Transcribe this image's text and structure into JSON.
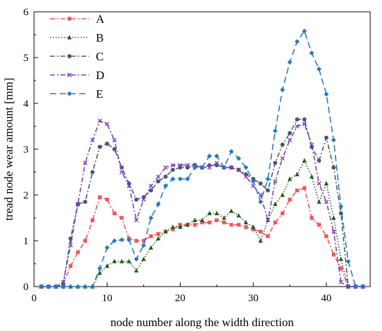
{
  "chart_data": {
    "type": "line",
    "xlabel": "node number along the width direction",
    "ylabel": "tread node wear amount [mm]",
    "xlim": [
      0,
      46
    ],
    "ylim": [
      0,
      6
    ],
    "xticks": [
      0,
      10,
      20,
      30,
      40
    ],
    "yticks": [
      0,
      1,
      2,
      3,
      4,
      5,
      6
    ],
    "legend_position": "top-left",
    "grid": false,
    "series": [
      {
        "name": "A",
        "color": "#f2545b",
        "dash": "dashdot",
        "marker": "square",
        "x": [
          1,
          2,
          3,
          4,
          5,
          6,
          7,
          8,
          9,
          10,
          11,
          12,
          13,
          14,
          15,
          16,
          17,
          18,
          19,
          20,
          21,
          22,
          23,
          24,
          25,
          26,
          27,
          28,
          29,
          30,
          31,
          32,
          33,
          34,
          35,
          36,
          37,
          38,
          39,
          40,
          41,
          42,
          43,
          44,
          45
        ],
        "y": [
          0,
          0,
          0,
          0.05,
          0.45,
          0.75,
          1.0,
          1.45,
          1.95,
          1.9,
          1.6,
          1.5,
          1.05,
          1.0,
          1.0,
          1.1,
          1.15,
          1.2,
          1.25,
          1.35,
          1.35,
          1.35,
          1.4,
          1.4,
          1.45,
          1.4,
          1.35,
          1.35,
          1.3,
          1.25,
          1.2,
          1.1,
          1.4,
          1.6,
          1.9,
          2.1,
          2.15,
          1.5,
          1.35,
          1.1,
          0.7,
          0.4,
          0,
          0,
          0
        ]
      },
      {
        "name": "B",
        "color": "#1e5e1e",
        "dash": "dot",
        "marker": "triangle",
        "x": [
          1,
          2,
          3,
          4,
          5,
          6,
          7,
          8,
          9,
          10,
          11,
          12,
          13,
          14,
          15,
          16,
          17,
          18,
          19,
          20,
          21,
          22,
          23,
          24,
          25,
          26,
          27,
          28,
          29,
          30,
          31,
          32,
          33,
          34,
          35,
          36,
          37,
          38,
          39,
          40,
          41,
          42,
          43,
          44,
          45
        ],
        "y": [
          0,
          0,
          0,
          0,
          0,
          0,
          0,
          0,
          0.3,
          0.45,
          0.55,
          0.55,
          0.55,
          0.35,
          0.6,
          0.85,
          1.05,
          1.2,
          1.3,
          1.3,
          1.35,
          1.45,
          1.45,
          1.6,
          1.6,
          1.5,
          1.65,
          1.55,
          1.4,
          1.3,
          1.0,
          1.45,
          1.8,
          2.0,
          2.35,
          2.45,
          2.75,
          2.4,
          1.85,
          2.25,
          1.5,
          0.6,
          0,
          0,
          0
        ]
      },
      {
        "name": "C",
        "color": "#475a73",
        "dash": "dashdot",
        "marker": "circle",
        "x": [
          1,
          2,
          3,
          4,
          5,
          6,
          7,
          8,
          9,
          10,
          11,
          12,
          13,
          14,
          15,
          16,
          17,
          18,
          19,
          20,
          21,
          22,
          23,
          24,
          25,
          26,
          27,
          28,
          29,
          30,
          31,
          32,
          33,
          34,
          35,
          36,
          37,
          38,
          39,
          40,
          41,
          42,
          43,
          44,
          45
        ],
        "y": [
          0,
          0,
          0,
          0.05,
          1.05,
          1.8,
          1.85,
          2.5,
          3.05,
          3.12,
          3.0,
          2.6,
          2.25,
          1.9,
          1.95,
          2.1,
          2.3,
          2.4,
          2.55,
          2.6,
          2.6,
          2.65,
          2.6,
          2.65,
          2.65,
          2.6,
          2.6,
          2.55,
          2.45,
          2.35,
          2.25,
          2.1,
          2.7,
          3.1,
          3.35,
          3.65,
          3.65,
          3.05,
          2.75,
          3.25,
          2.6,
          1.6,
          0,
          0,
          0
        ]
      },
      {
        "name": "D",
        "color": "#7a3fc0",
        "dash": "dashdot",
        "marker": "x",
        "x": [
          1,
          2,
          3,
          4,
          5,
          6,
          7,
          8,
          9,
          10,
          11,
          12,
          13,
          14,
          15,
          16,
          17,
          18,
          19,
          20,
          21,
          22,
          23,
          24,
          25,
          26,
          27,
          28,
          29,
          30,
          31,
          32,
          33,
          34,
          35,
          36,
          37,
          38,
          39,
          40,
          41,
          42,
          43,
          44,
          45
        ],
        "y": [
          0,
          0,
          0,
          0.1,
          0.9,
          1.8,
          2.7,
          3.2,
          3.62,
          3.55,
          3.2,
          2.5,
          2.2,
          1.45,
          1.9,
          2.2,
          2.4,
          2.6,
          2.65,
          2.65,
          2.65,
          2.65,
          2.6,
          2.6,
          2.7,
          2.6,
          2.6,
          2.55,
          2.4,
          2.2,
          2.0,
          1.45,
          2.3,
          2.8,
          3.2,
          3.5,
          3.55,
          3.1,
          2.25,
          1.85,
          1.2,
          0.1,
          0,
          0,
          0
        ]
      },
      {
        "name": "E",
        "color": "#2a78c2",
        "dash": "dash",
        "marker": "diamond",
        "x": [
          1,
          2,
          3,
          4,
          5,
          6,
          7,
          8,
          9,
          10,
          11,
          12,
          13,
          14,
          15,
          16,
          17,
          18,
          19,
          20,
          21,
          22,
          23,
          24,
          25,
          26,
          27,
          28,
          29,
          30,
          31,
          32,
          33,
          34,
          35,
          36,
          37,
          38,
          39,
          40,
          41,
          42,
          43,
          44,
          45
        ],
        "y": [
          0,
          0,
          0,
          0,
          0,
          0,
          0,
          0,
          0.4,
          0.85,
          1.0,
          1.02,
          1.02,
          0.6,
          0.9,
          1.5,
          1.8,
          2.2,
          2.35,
          2.35,
          2.35,
          2.6,
          2.6,
          2.85,
          2.85,
          2.6,
          2.95,
          2.8,
          2.6,
          2.3,
          1.85,
          2.35,
          3.4,
          4.3,
          4.9,
          5.35,
          5.58,
          5.1,
          4.75,
          4.2,
          3.2,
          1.75,
          0.55,
          0,
          0
        ]
      }
    ]
  }
}
